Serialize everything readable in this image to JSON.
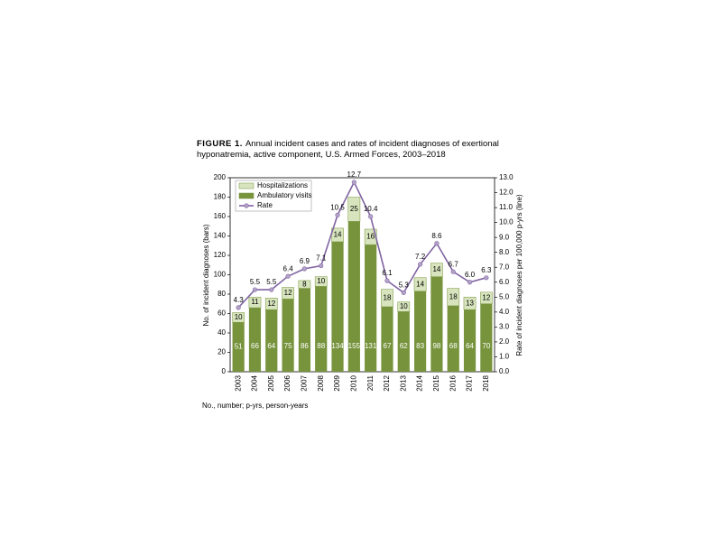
{
  "figure_label": "FIGURE 1.",
  "chart_data": {
    "type": "bar_line",
    "title": "Annual incident cases and rates of incident diagnoses of exertional hyponatremia, active component, U.S. Armed Forces, 2003–2018",
    "ylabel": "No. of incident diagnoses (bars)",
    "y2label": "Rate of incident diagnoses per 100,000 p-yrs (line)",
    "categories": [
      "2003",
      "2004",
      "2005",
      "2006",
      "2007",
      "2008",
      "2009",
      "2010",
      "2011",
      "2012",
      "2013",
      "2014",
      "2015",
      "2016",
      "2017",
      "2018"
    ],
    "series": [
      {
        "name": "Ambulatory visits",
        "type": "bar",
        "color": "#77933c",
        "values": [
          51,
          66,
          64,
          75,
          86,
          88,
          134,
          155,
          131,
          67,
          62,
          83,
          98,
          68,
          64,
          70
        ]
      },
      {
        "name": "Hospitalizations",
        "type": "bar",
        "color": "#d7e4bd",
        "values": [
          10,
          11,
          12,
          12,
          8,
          10,
          14,
          25,
          16,
          18,
          10,
          14,
          14,
          18,
          13,
          12
        ]
      },
      {
        "name": "Rate",
        "type": "line",
        "axis": "y2",
        "color": "#8064a2",
        "values": [
          4.3,
          5.5,
          5.5,
          6.4,
          6.9,
          7.1,
          10.5,
          12.7,
          10.4,
          6.1,
          5.3,
          7.2,
          8.6,
          6.7,
          6.0,
          6.3
        ],
        "value_labels": [
          "4.3",
          "5.5",
          "5.5",
          "6.4",
          "6.9",
          "7.1",
          "10.5",
          "12.7",
          "10.4",
          "6.1",
          "5.3",
          "7.2",
          "8.6",
          "6.7",
          "6.0",
          "6.3"
        ]
      }
    ],
    "ylim": [
      0,
      200
    ],
    "yticks": [
      0,
      20,
      40,
      60,
      80,
      100,
      120,
      140,
      160,
      180,
      200
    ],
    "y2lim": [
      0,
      13
    ],
    "y2ticks": [
      {
        "value": 0,
        "label": "0.0"
      },
      {
        "value": 1,
        "label": "1.0"
      },
      {
        "value": 2,
        "label": "2.0"
      },
      {
        "value": 3,
        "label": "3.0"
      },
      {
        "value": 4,
        "label": "4.0"
      },
      {
        "value": 5,
        "label": "5.0"
      },
      {
        "value": 6,
        "label": "6.0"
      },
      {
        "value": 7,
        "label": "7.0"
      },
      {
        "value": 8,
        "label": "8.0"
      },
      {
        "value": 9,
        "label": "9.0"
      },
      {
        "value": 10,
        "label": "10.0"
      },
      {
        "value": 11,
        "label": "11.0"
      },
      {
        "value": 12,
        "label": "12.0"
      },
      {
        "value": 13,
        "label": "13.0"
      }
    ],
    "legend": "upper left",
    "footnote": "No., number; p-yrs, person-years"
  }
}
